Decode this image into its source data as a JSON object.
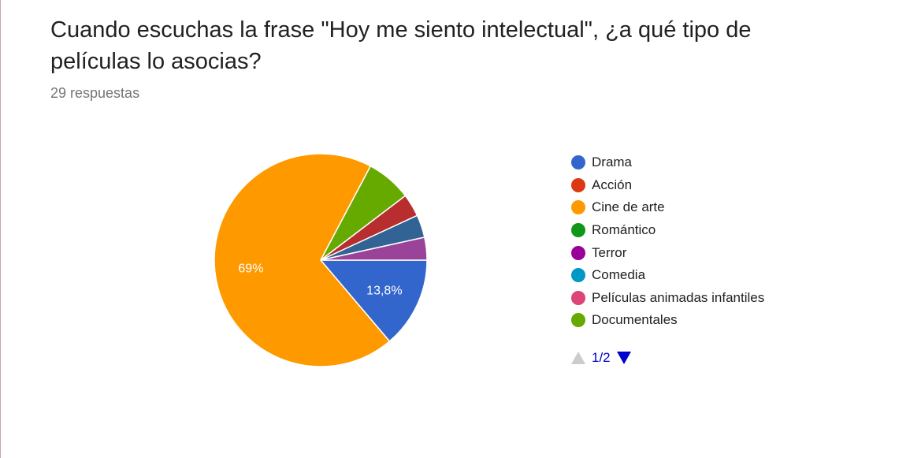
{
  "header": {
    "title": "Cuando escuchas la frase \"Hoy me siento intelectual\", ¿a qué tipo de películas lo asocias?",
    "responses": "29 respuestas"
  },
  "chart_data": {
    "type": "pie",
    "title": "Cuando escuchas la frase \"Hoy me siento intelectual\", ¿a qué tipo de películas lo asocias?",
    "categories": [
      "Drama",
      "Acción",
      "Cine de arte",
      "Romántico",
      "Terror",
      "Comedia",
      "Películas animadas infantiles",
      "Documentales"
    ],
    "slices": [
      {
        "label": "Drama",
        "value": 13.8,
        "color": "#3366cc",
        "data_label": "13,8%"
      },
      {
        "label": "Cine de arte",
        "value": 69.0,
        "color": "#ff9900",
        "data_label": "69%"
      },
      {
        "label": "Documentales",
        "value": 6.9,
        "color": "#66aa00",
        "data_label": ""
      },
      {
        "label": "",
        "value": 3.45,
        "color": "#b82e2e",
        "data_label": ""
      },
      {
        "label": "",
        "value": 3.45,
        "color": "#316395",
        "data_label": ""
      },
      {
        "label": "",
        "value": 3.45,
        "color": "#994499",
        "data_label": ""
      }
    ],
    "legend_position": "right"
  },
  "legend": {
    "items": [
      {
        "label": "Drama",
        "color": "#3366cc"
      },
      {
        "label": "Acción",
        "color": "#dc3912"
      },
      {
        "label": "Cine de arte",
        "color": "#ff9900"
      },
      {
        "label": "Romántico",
        "color": "#109618"
      },
      {
        "label": "Terror",
        "color": "#990099"
      },
      {
        "label": "Comedia",
        "color": "#0099c6"
      },
      {
        "label": "Películas animadas infantiles",
        "color": "#dd4477"
      },
      {
        "label": "Documentales",
        "color": "#66aa00"
      }
    ],
    "page_label": "1/2"
  }
}
